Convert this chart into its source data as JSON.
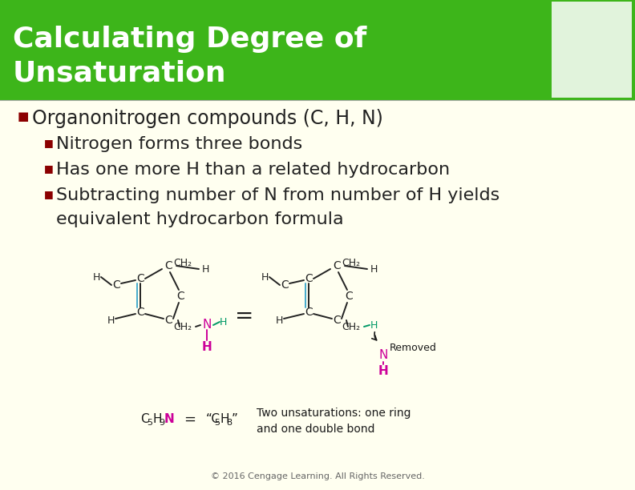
{
  "title_line1": "Calculating Degree of",
  "title_line2": "Unsaturation",
  "title_bg_color": "#3db51a",
  "title_text_color": "#ffffff",
  "body_bg_color": "#fffff0",
  "bullet_color": "#8b0000",
  "text_color": "#222222",
  "bullet1": "Organonitrogen compounds (C, H, N)",
  "sub_bullet1": "Nitrogen forms three bonds",
  "sub_bullet2": "Has one more H than a related hydrocarbon",
  "sub_bullet3a": "Subtracting number of N from number of H yields",
  "sub_bullet3b": "equivalent hydrocarbon formula",
  "footer": "© 2016 Cengage Learning. All Rights Reserved.",
  "green_color": "#3db51a",
  "magenta_color": "#cc0099",
  "teal_color": "#009966",
  "cyan_color": "#44aacc",
  "black": "#1a1a1a"
}
